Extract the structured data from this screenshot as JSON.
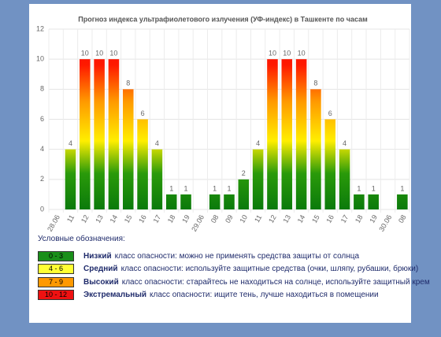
{
  "chart_data": {
    "type": "bar",
    "title": "Прогноз индекса ультрафиолетового излучения (УФ-индекс) в Ташкенте по часам",
    "categories": [
      "28.06",
      "11",
      "12",
      "13",
      "14",
      "15",
      "16",
      "17",
      "18",
      "19",
      "29.06",
      "08",
      "09",
      "10",
      "11",
      "12",
      "13",
      "14",
      "15",
      "16",
      "17",
      "18",
      "19",
      "30.06",
      "08"
    ],
    "values": [
      null,
      4,
      10,
      10,
      10,
      8,
      6,
      4,
      1,
      1,
      null,
      1,
      1,
      2,
      4,
      10,
      10,
      10,
      8,
      6,
      4,
      1,
      1,
      null,
      1
    ],
    "ylim": [
      0,
      12
    ],
    "yticks": [
      0,
      2,
      4,
      6,
      8,
      10,
      12
    ],
    "grid": true
  },
  "legend": {
    "title": "Условные обозначения:",
    "items": [
      {
        "range": "0 - 3",
        "name": "Низкий",
        "text": "класс опасности: можно не применять средства защиты от солнца",
        "color": "#1a8f1a"
      },
      {
        "range": "4 - 6",
        "name": "Средний",
        "text": "класс опасности: используйте защитные средства (очки, шляпу, рубашки, брюки)",
        "color": "#ffff33"
      },
      {
        "range": "7 - 9",
        "name": "Высокий",
        "text": "класс опасности: старайтесь не находиться на солнце, используйте защитный крем",
        "color": "#ff9900"
      },
      {
        "range": "10 - 12",
        "name": "Экстремальный",
        "text": "класс опасности: ищите тень, лучше находиться в помещении",
        "color": "#ee1111"
      }
    ]
  }
}
